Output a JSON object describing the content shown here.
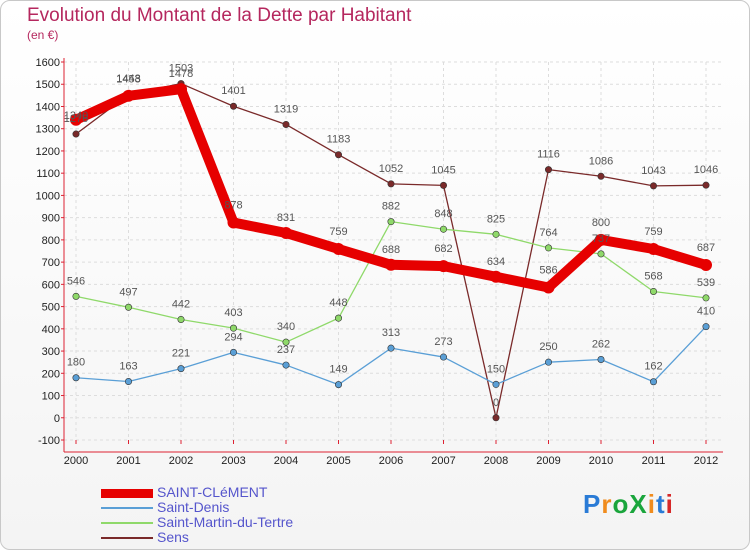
{
  "chart_data": {
    "type": "line",
    "title": "Evolution du Montant de la Dette par Habitant",
    "subtitle": "(en €)",
    "xlabel": "",
    "ylabel": "",
    "categories": [
      "2000",
      "2001",
      "2002",
      "2003",
      "2004",
      "2005",
      "2006",
      "2007",
      "2008",
      "2009",
      "2010",
      "2011",
      "2012"
    ],
    "ylim": [
      -100,
      1600
    ],
    "yticks": [
      -100,
      0,
      100,
      200,
      300,
      400,
      500,
      600,
      700,
      800,
      900,
      1000,
      1100,
      1200,
      1300,
      1400,
      1500,
      1600
    ],
    "grid": true,
    "legend_position": "bottom-left",
    "series": [
      {
        "name": "SAINT-CLéMENT",
        "color": "#e60000",
        "values": [
          1340,
          1448,
          1478,
          878,
          831,
          759,
          688,
          682,
          634,
          586,
          800,
          759,
          687
        ],
        "labels": [
          "1340",
          "1448",
          "1478",
          "878",
          "831",
          "759",
          "688",
          "682",
          "634",
          "586",
          "800",
          "759",
          "687"
        ]
      },
      {
        "name": "Saint-Denis",
        "color": "#5a9fd6",
        "values": [
          180,
          163,
          221,
          294,
          237,
          149,
          313,
          273,
          150,
          250,
          262,
          162,
          410
        ],
        "labels": [
          "180",
          "163",
          "221",
          "294",
          "237",
          "149",
          "313",
          "273",
          "150",
          "250",
          "262",
          "162",
          "410"
        ]
      },
      {
        "name": "Saint-Martin-du-Tertre",
        "color": "#8fd96a",
        "values": [
          546,
          497,
          442,
          403,
          340,
          448,
          882,
          848,
          825,
          764,
          737,
          568,
          539
        ],
        "labels": [
          "546",
          "497",
          "442",
          "403",
          "340",
          "448",
          "882",
          "848",
          "825",
          "764",
          "737",
          "568",
          "539"
        ]
      },
      {
        "name": "Sens",
        "color": "#7a2a2a",
        "values": [
          1276,
          1453,
          1503,
          1401,
          1319,
          1183,
          1052,
          1045,
          0,
          1116,
          1086,
          1043,
          1046
        ],
        "labels": [
          "1276",
          "1453",
          "1503",
          "1401",
          "1319",
          "1183",
          "1052",
          "1045",
          "0",
          "1116",
          "1086",
          "1043",
          "1046"
        ]
      }
    ]
  },
  "brand": {
    "text": "ProXiti",
    "colors": [
      "#2a7bd6",
      "#f08c1e",
      "#1aa53c",
      "#1aa53c",
      "#f08c1e",
      "#2a7bd6",
      "#d62828"
    ]
  }
}
